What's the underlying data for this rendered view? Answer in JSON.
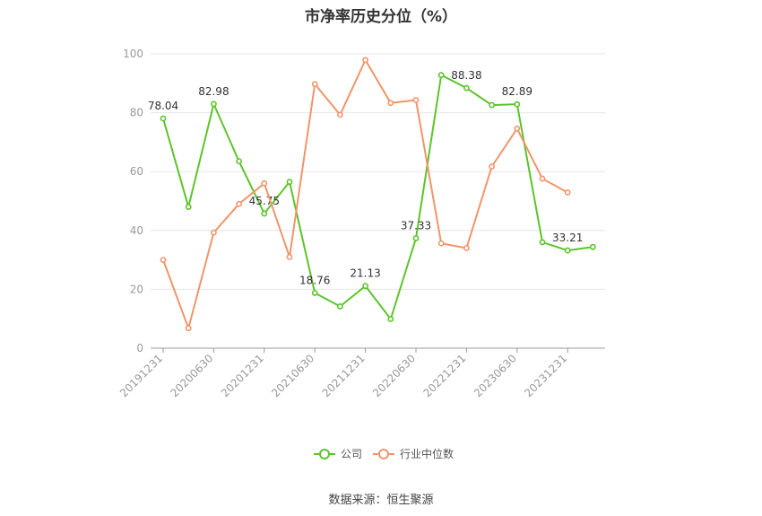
{
  "chart_data": {
    "type": "line",
    "title": "市净率历史分位（%）",
    "source": "数据来源：恒生聚源",
    "ylim": [
      0,
      100
    ],
    "yticks": [
      0,
      20,
      40,
      60,
      80,
      100
    ],
    "x": [
      "20191231",
      "20200331",
      "20200630",
      "20200930",
      "20201231",
      "20210331",
      "20210630",
      "20210930",
      "20211231",
      "20220331",
      "20220630",
      "20220930",
      "20221231",
      "20230331",
      "20230630",
      "20230930",
      "20231231",
      "20240331"
    ],
    "xtick_labels": [
      "20191231",
      "20200630",
      "20201231",
      "20210630",
      "20211231",
      "20220630",
      "20221231",
      "20230630",
      "20231231"
    ],
    "series": [
      {
        "name": "公司",
        "color": "#5cc42b",
        "values": [
          78.04,
          48,
          82.98,
          63.5,
          45.75,
          56.5,
          18.76,
          14.2,
          21.13,
          9.9,
          37.33,
          92.8,
          88.38,
          82.6,
          82.89,
          36,
          33.21,
          34.4
        ],
        "labels": {
          "0": "78.04",
          "2": "82.98",
          "4": "45.75",
          "6": "18.76",
          "8": "21.13",
          "10": "37.33",
          "12": "88.38",
          "14": "82.89",
          "16": "33.21"
        }
      },
      {
        "name": "行业中位数",
        "color": "#f0956a",
        "values": [
          30,
          6.8,
          39.3,
          49,
          56,
          31,
          89.7,
          79.3,
          97.9,
          83.3,
          84.3,
          35.6,
          34,
          61.7,
          74.6,
          57.6,
          52.9,
          null
        ]
      }
    ],
    "legend_position": "bottom",
    "grid": true
  }
}
